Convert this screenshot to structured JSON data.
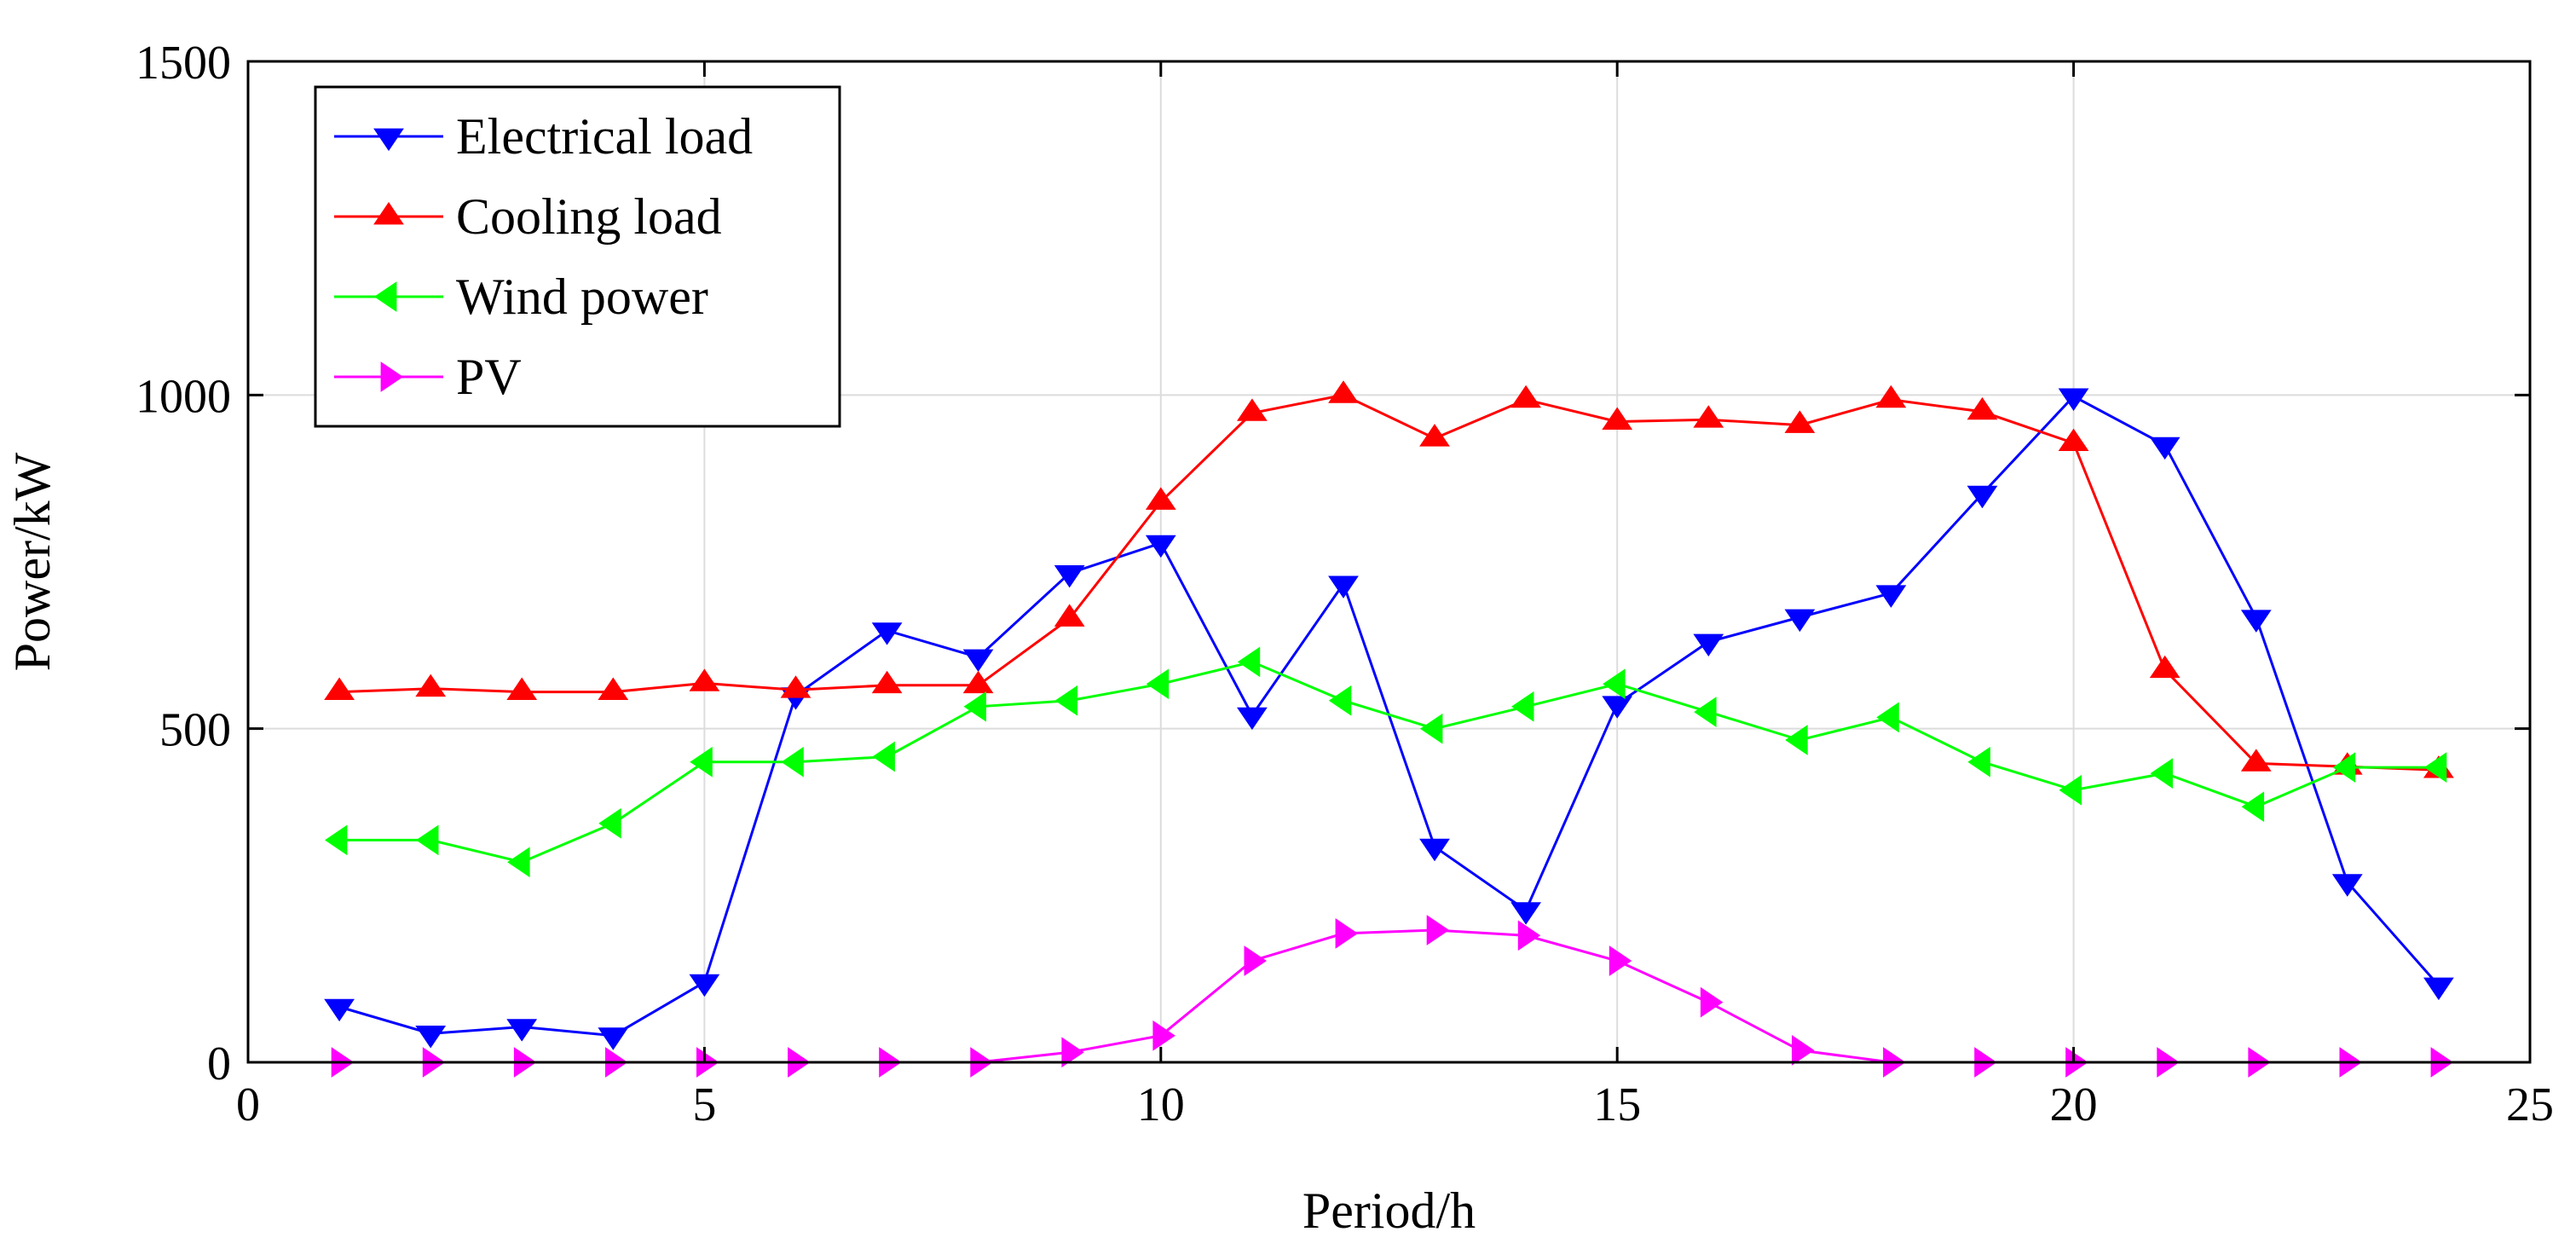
{
  "chart_data": {
    "type": "line",
    "title": "",
    "xlabel": "Period/h",
    "ylabel": "Power/kW",
    "xlim": [
      0,
      25
    ],
    "ylim": [
      0,
      1500
    ],
    "xticks": [
      0,
      5,
      10,
      15,
      20,
      25
    ],
    "yticks": [
      0,
      500,
      1000,
      1500
    ],
    "grid": true,
    "legend_position": "top-left",
    "x": [
      1,
      2,
      3,
      4,
      5,
      6,
      7,
      8,
      9,
      10,
      11,
      12,
      13,
      14,
      15,
      16,
      17,
      18,
      19,
      20,
      21,
      22,
      23,
      24
    ],
    "series": [
      {
        "name": "Electrical load",
        "color": "#0000ff",
        "marker": "triangle-down",
        "values": [
          83,
          43,
          53,
          40,
          120,
          550,
          647,
          607,
          733,
          778,
          520,
          717,
          323,
          228,
          537,
          630,
          667,
          703,
          852,
          998,
          925,
          666,
          270,
          115
        ]
      },
      {
        "name": "Cooling load",
        "color": "#ff0000",
        "marker": "triangle-up",
        "values": [
          555,
          560,
          555,
          555,
          568,
          558,
          565,
          565,
          665,
          840,
          973,
          1000,
          935,
          993,
          960,
          963,
          955,
          993,
          975,
          928,
          588,
          448,
          443,
          438
        ]
      },
      {
        "name": "Wind power",
        "color": "#00ff00",
        "marker": "triangle-left",
        "values": [
          333,
          333,
          300,
          358,
          450,
          450,
          458,
          533,
          542,
          567,
          600,
          542,
          500,
          533,
          567,
          525,
          483,
          517,
          450,
          408,
          433,
          383,
          442,
          442
        ]
      },
      {
        "name": "PV",
        "color": "#ff00ff",
        "marker": "triangle-right",
        "values": [
          0,
          0,
          0,
          0,
          0,
          0,
          0,
          0,
          15,
          40,
          152,
          193,
          198,
          190,
          152,
          90,
          18,
          0,
          0,
          0,
          0,
          0,
          0,
          0
        ]
      }
    ]
  }
}
